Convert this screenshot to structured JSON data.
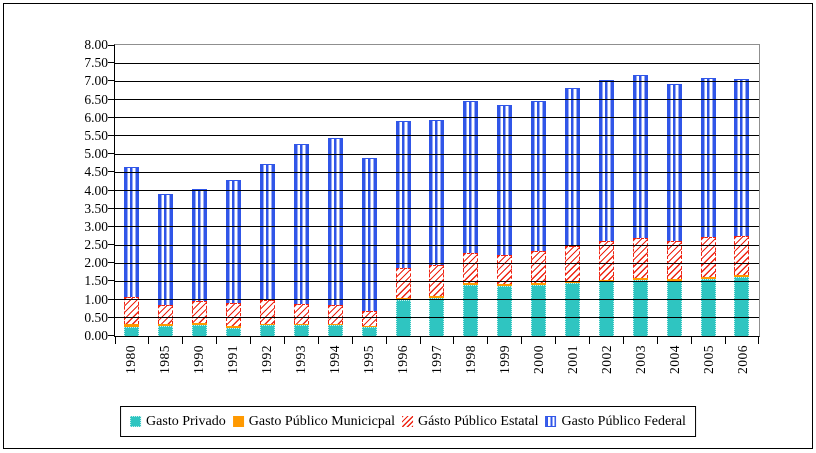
{
  "chart_data": {
    "type": "bar",
    "stacked": true,
    "title": "",
    "xlabel": "",
    "ylabel": "",
    "ylim": [
      0,
      8
    ],
    "y_tick_step": 0.5,
    "grid": "horizontal-black-on-white",
    "legend_position": "bottom-center",
    "categories": [
      "1980",
      "1985",
      "1990",
      "1991",
      "1992",
      "1993",
      "1994",
      "1995",
      "1996",
      "1997",
      "1998",
      "1999",
      "2000",
      "2001",
      "2002",
      "2003",
      "2004",
      "2005",
      "2006"
    ],
    "y_ticks": [
      "8.00",
      "7.50",
      "7.00",
      "6.50",
      "6.00",
      "5.50",
      "5.00",
      "4.50",
      "4.00",
      "3.50",
      "3.00",
      "2.50",
      "2.00",
      "1.50",
      "1.00",
      "0.50",
      "0.00"
    ],
    "series": [
      {
        "name": "Gasto Privado",
        "color": "#2fc5c1",
        "pattern": "solid-dotted-edge",
        "values": [
          0.25,
          0.28,
          0.3,
          0.22,
          0.3,
          0.3,
          0.3,
          0.25,
          1.0,
          1.05,
          1.4,
          1.38,
          1.4,
          1.45,
          1.5,
          1.55,
          1.52,
          1.58,
          1.63
        ]
      },
      {
        "name": "Gasto Público Municicpal",
        "color": "#ff9900",
        "pattern": "solid",
        "values": [
          0.08,
          0.05,
          0.06,
          0.05,
          0.04,
          0.04,
          0.04,
          0.03,
          0.05,
          0.04,
          0.05,
          0.04,
          0.05,
          0.05,
          0.04,
          0.04,
          0.05,
          0.05,
          0.05
        ]
      },
      {
        "name": "Gásto Público Estatal",
        "color": "#ee2211",
        "pattern": "diagonal-hatch",
        "values": [
          0.75,
          0.52,
          0.61,
          0.63,
          0.64,
          0.54,
          0.51,
          0.42,
          0.83,
          0.86,
          0.83,
          0.81,
          0.88,
          0.97,
          1.06,
          1.11,
          1.05,
          1.09,
          1.07
        ]
      },
      {
        "name": "Gasto Público Federal",
        "color": "#3056e8",
        "pattern": "vertical-stripes",
        "values": [
          3.57,
          3.05,
          3.08,
          3.4,
          3.74,
          4.4,
          4.6,
          4.2,
          4.04,
          4.0,
          4.17,
          4.12,
          4.12,
          4.36,
          4.45,
          4.48,
          4.31,
          4.38,
          4.33
        ]
      }
    ],
    "totals": [
      4.65,
      3.9,
      4.05,
      4.3,
      4.72,
      5.28,
      5.45,
      4.9,
      5.92,
      5.95,
      6.45,
      6.35,
      6.45,
      6.83,
      7.05,
      7.18,
      6.93,
      7.1,
      7.08
    ]
  }
}
